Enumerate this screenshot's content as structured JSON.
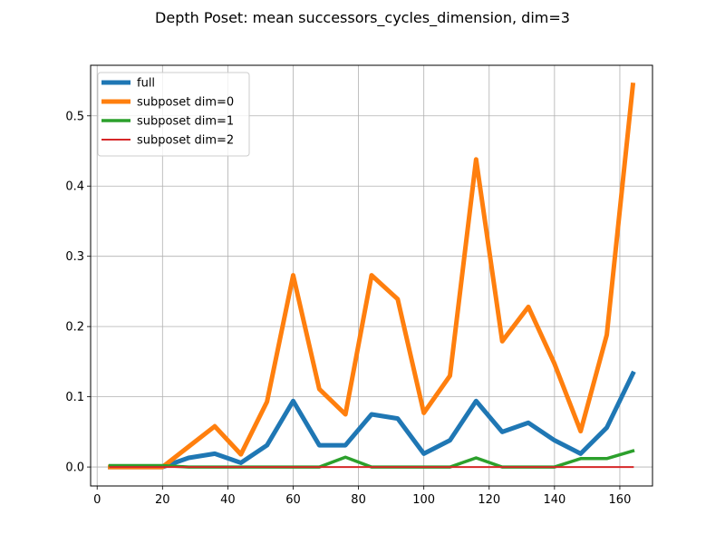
{
  "chart_data": {
    "type": "line",
    "title": "Depth Poset: mean successors_cycles_dimension, dim=3",
    "xlabel": "",
    "ylabel": "",
    "xlim": [
      -2,
      170
    ],
    "ylim": [
      -0.027,
      0.572
    ],
    "x_ticks": [
      0,
      20,
      40,
      60,
      80,
      100,
      120,
      140,
      160
    ],
    "y_ticks": [
      0.0,
      0.1,
      0.2,
      0.3,
      0.4,
      0.5
    ],
    "y_tick_labels": [
      "0.0",
      "0.1",
      "0.2",
      "0.3",
      "0.4",
      "0.5"
    ],
    "grid": true,
    "legend_position": "top-left",
    "x": [
      4,
      12,
      20,
      28,
      36,
      44,
      52,
      60,
      68,
      76,
      84,
      92,
      100,
      108,
      116,
      124,
      132,
      140,
      148,
      156,
      164
    ],
    "series": [
      {
        "name": "full",
        "color": "#1f77b4",
        "values": [
          0.0,
          0.0,
          0.0,
          0.013,
          0.019,
          0.006,
          0.031,
          0.094,
          0.031,
          0.031,
          0.075,
          0.069,
          0.019,
          0.038,
          0.094,
          0.05,
          0.063,
          0.038,
          0.019,
          0.056,
          0.133
        ]
      },
      {
        "name": "subposet dim=0",
        "color": "#ff7f0e",
        "values": [
          0.0,
          0.0,
          0.0,
          0.029,
          0.058,
          0.018,
          0.093,
          0.273,
          0.111,
          0.075,
          0.273,
          0.239,
          0.077,
          0.13,
          0.438,
          0.179,
          0.228,
          0.147,
          0.051,
          0.188,
          0.544
        ]
      },
      {
        "name": "subposet dim=1",
        "color": "#2ca02c",
        "values": [
          0.002,
          0.002,
          0.002,
          0.0,
          0.0,
          0.0,
          0.0,
          0.0,
          0.0,
          0.014,
          0.0,
          0.0,
          0.0,
          0.0,
          0.013,
          0.0,
          0.0,
          0.0,
          0.012,
          0.012,
          0.023
        ]
      },
      {
        "name": "subposet dim=2",
        "color": "#d62728",
        "values": [
          0.0,
          0.0,
          0.0,
          0.0,
          0.0,
          0.0,
          0.0,
          0.0,
          0.0,
          0.0,
          0.0,
          0.0,
          0.0,
          0.0,
          0.0,
          0.0,
          0.0,
          0.0,
          0.0,
          0.0,
          0.0
        ]
      }
    ]
  }
}
